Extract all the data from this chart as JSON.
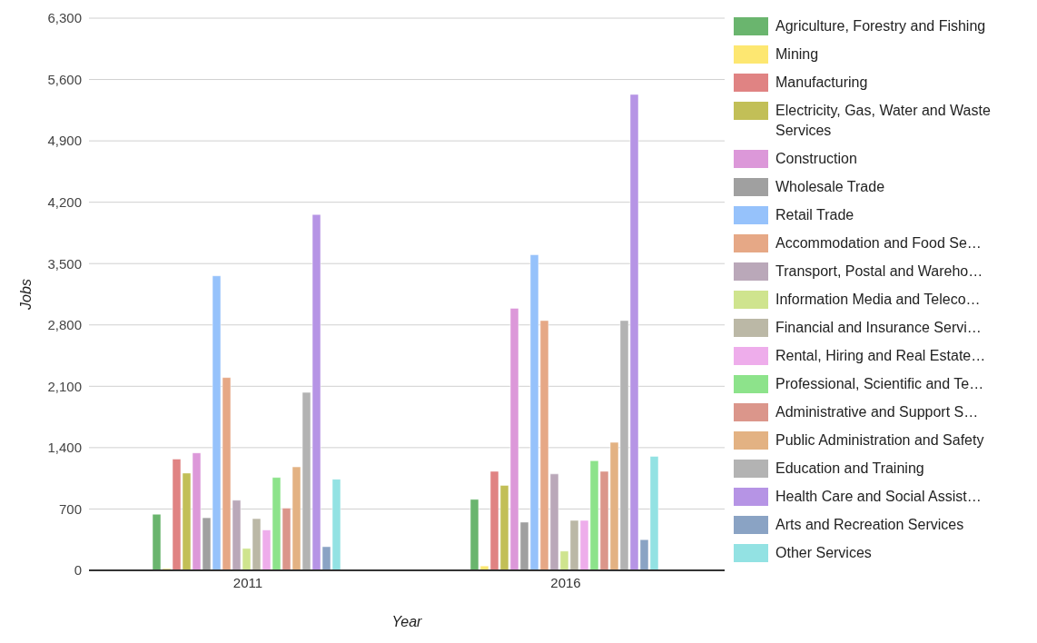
{
  "chart_data": {
    "type": "bar",
    "xlabel": "Year",
    "ylabel": "Jobs",
    "categories": [
      "2011",
      "2016"
    ],
    "ylim": [
      0,
      6300
    ],
    "yticks": [
      {
        "value": 0,
        "label": "0"
      },
      {
        "value": 700,
        "label": "700"
      },
      {
        "value": 1400,
        "label": "1,400"
      },
      {
        "value": 2100,
        "label": "2,100"
      },
      {
        "value": 2800,
        "label": "2,800"
      },
      {
        "value": 3500,
        "label": "3,500"
      },
      {
        "value": 4200,
        "label": "4,200"
      },
      {
        "value": 4900,
        "label": "4,900"
      },
      {
        "value": 5600,
        "label": "5,600"
      },
      {
        "value": 6300,
        "label": "6,300"
      }
    ],
    "grid": "y",
    "legend": "right",
    "series": [
      {
        "name": "Agriculture, Forestry and Fishing",
        "color": "#6ab56e",
        "values": [
          640,
          810
        ]
      },
      {
        "name": "Mining",
        "color": "#fde771",
        "values": [
          20,
          50
        ]
      },
      {
        "name": "Manufacturing",
        "color": "#e08383",
        "values": [
          1270,
          1130
        ]
      },
      {
        "name": "Electricity, Gas, Water and Waste Services",
        "color": "#c2bf57",
        "values": [
          1110,
          970
        ]
      },
      {
        "name": "Construction",
        "color": "#dc98d9",
        "values": [
          1340,
          2990
        ]
      },
      {
        "name": "Wholesale Trade",
        "color": "#a0a0a0",
        "values": [
          600,
          550
        ]
      },
      {
        "name": "Retail Trade",
        "color": "#96c2fb",
        "values": [
          3360,
          3600
        ]
      },
      {
        "name": "Accommodation and Food Se…",
        "color": "#e6a886",
        "values": [
          2200,
          2850
        ]
      },
      {
        "name": "Transport, Postal and Wareho…",
        "color": "#baa8b9",
        "values": [
          800,
          1100
        ]
      },
      {
        "name": "Information Media and Teleco…",
        "color": "#cfe48e",
        "values": [
          250,
          220
        ]
      },
      {
        "name": "Financial and Insurance Servi…",
        "color": "#bbb8a6",
        "values": [
          590,
          570
        ]
      },
      {
        "name": "Rental, Hiring and Real Estate…",
        "color": "#eeadeb",
        "values": [
          460,
          570
        ]
      },
      {
        "name": "Professional, Scientific and Te…",
        "color": "#8de38b",
        "values": [
          1060,
          1250
        ]
      },
      {
        "name": "Administrative and Support S…",
        "color": "#db968b",
        "values": [
          710,
          1130
        ]
      },
      {
        "name": "Public Administration and Safety",
        "color": "#e3b283",
        "values": [
          1180,
          1460
        ]
      },
      {
        "name": "Education and Training",
        "color": "#b3b3b3",
        "values": [
          2030,
          2850
        ]
      },
      {
        "name": "Health Care and Social Assist…",
        "color": "#b694e5",
        "values": [
          4060,
          5430
        ]
      },
      {
        "name": "Arts and Recreation Services",
        "color": "#8aa3c4",
        "values": [
          270,
          350
        ]
      },
      {
        "name": "Other Services",
        "color": "#93e2e3",
        "values": [
          1040,
          1300
        ]
      }
    ]
  }
}
